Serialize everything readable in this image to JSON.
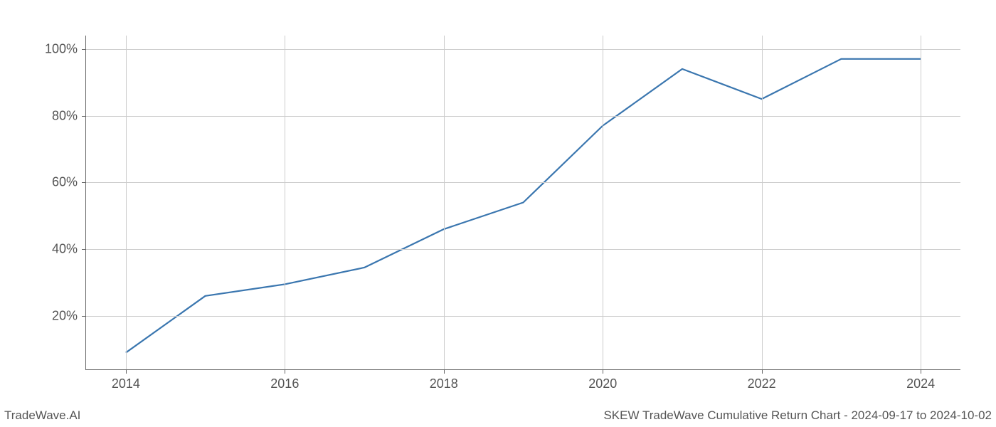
{
  "chart": {
    "type": "line",
    "x_values": [
      2014,
      2015,
      2016,
      2017,
      2018,
      2019,
      2020,
      2021,
      2022,
      2023,
      2024
    ],
    "y_values": [
      9,
      26,
      29.5,
      34.5,
      46,
      54,
      77,
      94,
      85,
      97,
      97
    ],
    "x_ticks": [
      2014,
      2016,
      2018,
      2020,
      2022,
      2024
    ],
    "x_tick_labels": [
      "2014",
      "2016",
      "2018",
      "2020",
      "2022",
      "2024"
    ],
    "y_ticks": [
      20,
      40,
      60,
      80,
      100
    ],
    "y_tick_labels": [
      "20%",
      "40%",
      "60%",
      "80%",
      "100%"
    ],
    "xlim": [
      2013.5,
      2024.5
    ],
    "ylim": [
      4,
      104
    ],
    "line_color": "#3a76af",
    "line_width": 2.2,
    "grid_color": "#cccccc",
    "axis_color": "#666666",
    "tick_color": "#666666",
    "background_color": "#ffffff",
    "label_fontsize": 18,
    "label_color": "#555555"
  },
  "footer": {
    "left": "TradeWave.AI",
    "right": "SKEW TradeWave Cumulative Return Chart - 2024-09-17 to 2024-10-02"
  }
}
